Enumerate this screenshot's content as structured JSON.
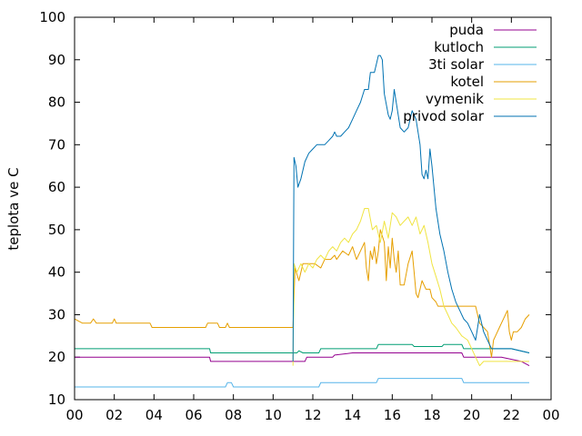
{
  "chart_data": {
    "type": "line",
    "title": "",
    "xlabel": "",
    "ylabel": "teplota ve C",
    "xlim": [
      0,
      24
    ],
    "ylim": [
      10,
      100
    ],
    "grid": false,
    "legend_position": "top-right",
    "x_ticks": [
      "00",
      "02",
      "04",
      "06",
      "08",
      "10",
      "12",
      "14",
      "16",
      "18",
      "20",
      "22",
      "00"
    ],
    "y_ticks": [
      "10",
      "20",
      "30",
      "40",
      "50",
      "60",
      "70",
      "80",
      "90",
      "100"
    ],
    "x_unit": "hours",
    "series": [
      {
        "name": "puda",
        "color": "#94008f",
        "points": [
          [
            0,
            20
          ],
          [
            6.8,
            20
          ],
          [
            6.85,
            19
          ],
          [
            11,
            19
          ],
          [
            11.6,
            19
          ],
          [
            11.7,
            20
          ],
          [
            13,
            20
          ],
          [
            13.1,
            20.5
          ],
          [
            14,
            21
          ],
          [
            18,
            21
          ],
          [
            19.5,
            21
          ],
          [
            19.6,
            20
          ],
          [
            21.5,
            20
          ],
          [
            22.5,
            19
          ],
          [
            22.9,
            18
          ]
        ]
      },
      {
        "name": "kutloch",
        "color": "#009e73",
        "points": [
          [
            0,
            22
          ],
          [
            6.8,
            22
          ],
          [
            6.85,
            21
          ],
          [
            11.2,
            21
          ],
          [
            11.3,
            21.5
          ],
          [
            11.5,
            21
          ],
          [
            12.3,
            21
          ],
          [
            12.4,
            22
          ],
          [
            15.2,
            22
          ],
          [
            15.3,
            23
          ],
          [
            17,
            23
          ],
          [
            17.1,
            22.5
          ],
          [
            18.5,
            22.5
          ],
          [
            18.6,
            23
          ],
          [
            19.5,
            23
          ],
          [
            19.6,
            22
          ],
          [
            22,
            22
          ],
          [
            22.9,
            21
          ]
        ]
      },
      {
        "name": "3ti solar",
        "color": "#56b4e9",
        "points": [
          [
            0,
            13
          ],
          [
            7.6,
            13
          ],
          [
            7.7,
            14
          ],
          [
            7.9,
            14
          ],
          [
            8.0,
            13
          ],
          [
            12.3,
            13
          ],
          [
            12.4,
            14
          ],
          [
            15.2,
            14
          ],
          [
            15.3,
            15
          ],
          [
            19.5,
            15
          ],
          [
            19.6,
            14
          ],
          [
            22.9,
            14
          ]
        ]
      },
      {
        "name": "kotel",
        "color": "#e69f00",
        "points": [
          [
            0,
            29
          ],
          [
            0.4,
            28
          ],
          [
            0.8,
            28
          ],
          [
            0.95,
            29
          ],
          [
            1.1,
            28
          ],
          [
            1.9,
            28
          ],
          [
            2.0,
            29
          ],
          [
            2.1,
            28
          ],
          [
            3.8,
            28
          ],
          [
            3.9,
            27
          ],
          [
            6.6,
            27
          ],
          [
            6.7,
            28
          ],
          [
            7.2,
            28
          ],
          [
            7.3,
            27
          ],
          [
            7.6,
            27
          ],
          [
            7.7,
            28
          ],
          [
            7.8,
            27
          ],
          [
            10.6,
            27
          ],
          [
            10.9,
            27
          ],
          [
            11.0,
            27
          ],
          [
            11.1,
            41
          ],
          [
            11.3,
            38
          ],
          [
            11.5,
            42
          ],
          [
            11.8,
            42
          ],
          [
            12.1,
            42
          ],
          [
            12.4,
            41
          ],
          [
            12.6,
            43
          ],
          [
            12.9,
            43
          ],
          [
            13.1,
            44
          ],
          [
            13.2,
            43
          ],
          [
            13.5,
            45
          ],
          [
            13.8,
            44
          ],
          [
            14.0,
            46
          ],
          [
            14.2,
            43
          ],
          [
            14.4,
            45
          ],
          [
            14.6,
            47
          ],
          [
            14.7,
            41
          ],
          [
            14.8,
            38
          ],
          [
            14.9,
            45
          ],
          [
            15.0,
            43
          ],
          [
            15.1,
            46
          ],
          [
            15.2,
            42
          ],
          [
            15.3,
            45
          ],
          [
            15.4,
            50
          ],
          [
            15.6,
            47
          ],
          [
            15.7,
            38
          ],
          [
            15.8,
            46
          ],
          [
            15.9,
            41
          ],
          [
            16.0,
            48
          ],
          [
            16.1,
            43
          ],
          [
            16.2,
            40
          ],
          [
            16.3,
            45
          ],
          [
            16.4,
            37
          ],
          [
            16.6,
            37
          ],
          [
            16.8,
            42
          ],
          [
            17.0,
            45
          ],
          [
            17.1,
            40
          ],
          [
            17.2,
            35
          ],
          [
            17.3,
            34
          ],
          [
            17.5,
            38
          ],
          [
            17.7,
            36
          ],
          [
            17.9,
            36
          ],
          [
            18.0,
            34
          ],
          [
            18.2,
            33
          ],
          [
            18.3,
            32
          ],
          [
            19.0,
            32
          ],
          [
            20.2,
            32
          ],
          [
            20.4,
            28
          ],
          [
            20.6,
            27
          ],
          [
            20.8,
            26
          ],
          [
            20.9,
            23
          ],
          [
            21.0,
            20
          ],
          [
            21.1,
            24
          ],
          [
            21.2,
            25
          ],
          [
            21.4,
            27
          ],
          [
            21.7,
            30
          ],
          [
            21.8,
            31
          ],
          [
            21.9,
            26
          ],
          [
            22.0,
            24
          ],
          [
            22.1,
            26
          ],
          [
            22.3,
            26
          ],
          [
            22.5,
            27
          ],
          [
            22.7,
            29
          ],
          [
            22.9,
            30
          ]
        ]
      },
      {
        "name": "vymenik",
        "color": "#f0e442",
        "points": [
          [
            11,
            18
          ],
          [
            11.05,
            42
          ],
          [
            11.2,
            40
          ],
          [
            11.4,
            42
          ],
          [
            11.6,
            40
          ],
          [
            11.8,
            42
          ],
          [
            12.0,
            41
          ],
          [
            12.2,
            43
          ],
          [
            12.4,
            44
          ],
          [
            12.6,
            43
          ],
          [
            12.8,
            45
          ],
          [
            13.0,
            46
          ],
          [
            13.2,
            45
          ],
          [
            13.4,
            47
          ],
          [
            13.6,
            48
          ],
          [
            13.8,
            47
          ],
          [
            14.0,
            49
          ],
          [
            14.2,
            50
          ],
          [
            14.4,
            52
          ],
          [
            14.6,
            55
          ],
          [
            14.8,
            55
          ],
          [
            15.0,
            50
          ],
          [
            15.2,
            51
          ],
          [
            15.4,
            47
          ],
          [
            15.6,
            52
          ],
          [
            15.8,
            48
          ],
          [
            16.0,
            54
          ],
          [
            16.2,
            53
          ],
          [
            16.4,
            51
          ],
          [
            16.6,
            52
          ],
          [
            16.8,
            53
          ],
          [
            17.0,
            51
          ],
          [
            17.2,
            53
          ],
          [
            17.4,
            49
          ],
          [
            17.6,
            51
          ],
          [
            17.8,
            47
          ],
          [
            18.0,
            42
          ],
          [
            18.2,
            39
          ],
          [
            18.4,
            36
          ],
          [
            18.6,
            32
          ],
          [
            18.8,
            30
          ],
          [
            19.0,
            28
          ],
          [
            19.2,
            27
          ],
          [
            19.5,
            25
          ],
          [
            19.8,
            24
          ],
          [
            20.0,
            22
          ],
          [
            20.2,
            20
          ],
          [
            20.4,
            18
          ],
          [
            20.6,
            19
          ],
          [
            21.0,
            19
          ],
          [
            22.5,
            19
          ],
          [
            22.9,
            19
          ]
        ]
      },
      {
        "name": "privod solar",
        "color": "#0072b2",
        "points": [
          [
            11,
            19
          ],
          [
            11.05,
            67
          ],
          [
            11.15,
            65
          ],
          [
            11.25,
            60
          ],
          [
            11.4,
            62
          ],
          [
            11.6,
            66
          ],
          [
            11.8,
            68
          ],
          [
            12.0,
            69
          ],
          [
            12.2,
            70
          ],
          [
            12.6,
            70
          ],
          [
            12.8,
            71
          ],
          [
            13.0,
            72
          ],
          [
            13.1,
            73
          ],
          [
            13.2,
            72
          ],
          [
            13.4,
            72
          ],
          [
            13.6,
            73
          ],
          [
            13.8,
            74
          ],
          [
            14.0,
            76
          ],
          [
            14.2,
            78
          ],
          [
            14.4,
            80
          ],
          [
            14.6,
            83
          ],
          [
            14.8,
            83
          ],
          [
            14.9,
            87
          ],
          [
            15.1,
            87
          ],
          [
            15.2,
            89
          ],
          [
            15.3,
            91
          ],
          [
            15.4,
            91
          ],
          [
            15.5,
            90
          ],
          [
            15.6,
            82
          ],
          [
            15.8,
            77
          ],
          [
            15.9,
            76
          ],
          [
            16.0,
            78
          ],
          [
            16.1,
            83
          ],
          [
            16.2,
            80
          ],
          [
            16.4,
            74
          ],
          [
            16.6,
            73
          ],
          [
            16.8,
            74
          ],
          [
            17.0,
            78
          ],
          [
            17.2,
            76
          ],
          [
            17.4,
            70
          ],
          [
            17.5,
            63
          ],
          [
            17.6,
            62
          ],
          [
            17.7,
            64
          ],
          [
            17.8,
            62
          ],
          [
            17.9,
            69
          ],
          [
            18.0,
            65
          ],
          [
            18.2,
            55
          ],
          [
            18.4,
            49
          ],
          [
            18.6,
            45
          ],
          [
            18.8,
            40
          ],
          [
            19.0,
            36
          ],
          [
            19.2,
            33
          ],
          [
            19.4,
            31
          ],
          [
            19.6,
            29
          ],
          [
            19.8,
            28
          ],
          [
            20.0,
            26
          ],
          [
            20.2,
            24
          ],
          [
            20.3,
            27
          ],
          [
            20.4,
            30
          ],
          [
            20.6,
            26
          ],
          [
            20.8,
            24
          ],
          [
            21.0,
            22
          ],
          [
            21.2,
            22
          ],
          [
            22.0,
            22
          ],
          [
            22.9,
            21
          ]
        ]
      }
    ]
  }
}
